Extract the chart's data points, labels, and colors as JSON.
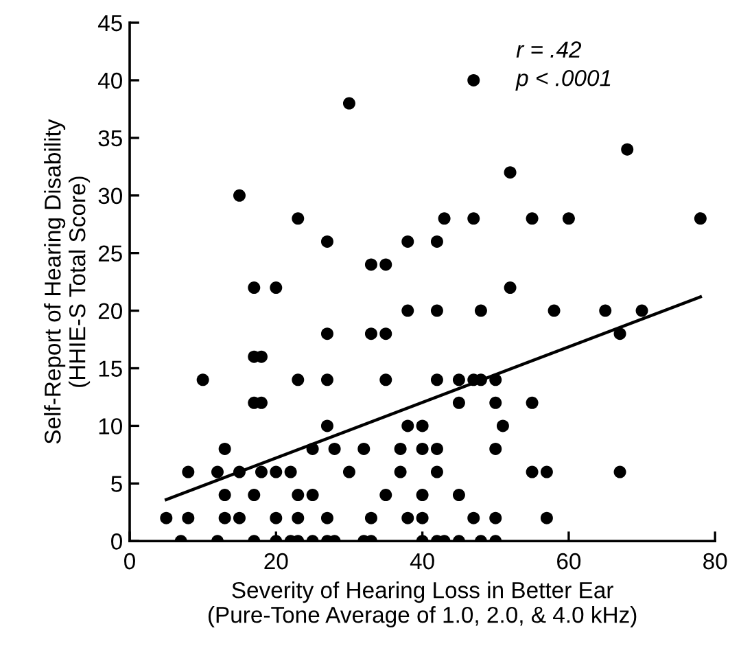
{
  "chart_data": {
    "type": "scatter",
    "xlabel": "Severity of Hearing Loss in Better Ear\n(Pure-Tone Average of 1.0, 2.0, & 4.0 kHz)",
    "ylabel": "Self-Report of Hearing Disability\n(HHIE-S Total Score)",
    "annotations": [
      "r = .42",
      "p < .0001"
    ],
    "xlim": [
      0,
      80
    ],
    "xticks": [
      0,
      20,
      40,
      60,
      80
    ],
    "ylim": [
      0,
      45
    ],
    "yticks": [
      0,
      5,
      10,
      15,
      20,
      25,
      30,
      35,
      40,
      45
    ],
    "grid": false,
    "series": [
      {
        "marker": "circle",
        "color": "#000000",
        "x": [
          47,
          30,
          68,
          52,
          15,
          23,
          43,
          47,
          55,
          60,
          78,
          27,
          38,
          42,
          33,
          35,
          17,
          20,
          52,
          38,
          42,
          48,
          58,
          65,
          70,
          27,
          33,
          35,
          67,
          17,
          18,
          10,
          23,
          27,
          35,
          42,
          45,
          47,
          48,
          50,
          17,
          18,
          45,
          50,
          55,
          27,
          38,
          40,
          51,
          13,
          25,
          28,
          32,
          37,
          40,
          42,
          50,
          8,
          12,
          15,
          18,
          20,
          22,
          30,
          37,
          42,
          55,
          57,
          67,
          13,
          17,
          23,
          25,
          35,
          40,
          45,
          5,
          8,
          13,
          15,
          20,
          23,
          27,
          33,
          38,
          40,
          47,
          50,
          57,
          7,
          12,
          17,
          20,
          22,
          23,
          25,
          27,
          28,
          32,
          33,
          40,
          42,
          43,
          45,
          48,
          50
        ],
        "values": [
          40,
          38,
          34,
          32,
          30,
          28,
          28,
          28,
          28,
          28,
          28,
          26,
          26,
          26,
          24,
          24,
          22,
          22,
          22,
          20,
          20,
          20,
          20,
          20,
          20,
          18,
          18,
          18,
          18,
          16,
          16,
          14,
          14,
          14,
          14,
          14,
          14,
          14,
          14,
          14,
          12,
          12,
          12,
          12,
          12,
          10,
          10,
          10,
          10,
          8,
          8,
          8,
          8,
          8,
          8,
          8,
          8,
          6,
          6,
          6,
          6,
          6,
          6,
          6,
          6,
          6,
          6,
          6,
          6,
          4,
          4,
          4,
          4,
          4,
          4,
          4,
          2,
          2,
          2,
          2,
          2,
          2,
          2,
          2,
          2,
          2,
          2,
          2,
          2,
          0,
          0,
          0,
          0,
          0,
          0,
          0,
          0,
          0,
          0,
          0,
          0,
          0,
          0,
          0,
          0,
          0
        ]
      },
      {
        "type": "line",
        "color": "#000000",
        "x": [
          5,
          78
        ],
        "values": [
          3.6,
          21.2
        ]
      }
    ]
  }
}
